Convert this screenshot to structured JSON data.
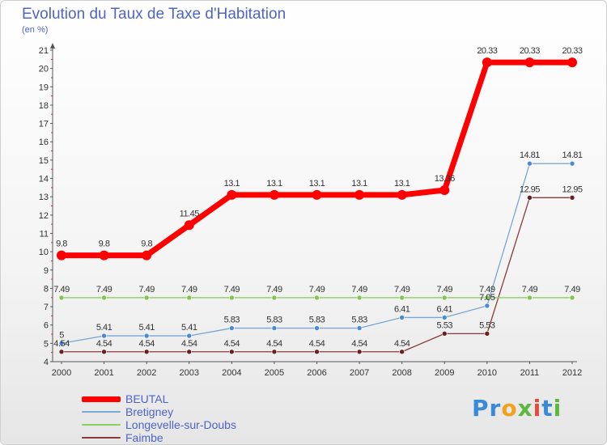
{
  "chart_data": {
    "type": "line",
    "title": "Evolution du Taux de Taxe d'Habitation",
    "ylabel": "(en %)",
    "xlabel": "",
    "x": [
      "2000",
      "2001",
      "2002",
      "2003",
      "2004",
      "2005",
      "2006",
      "2007",
      "2008",
      "2009",
      "2010",
      "2011",
      "2012"
    ],
    "ylim": [
      4,
      21
    ],
    "yticks": [
      "4",
      "5",
      "6",
      "7",
      "8",
      "9",
      "10",
      "11",
      "12",
      "13",
      "14",
      "15",
      "16",
      "17",
      "18",
      "19",
      "20",
      "21"
    ],
    "grid": false,
    "series": [
      {
        "name": "BEUTAL",
        "color": "#ff0000",
        "values": [
          9.8,
          9.8,
          9.8,
          11.45,
          13.1,
          13.1,
          13.1,
          13.1,
          13.1,
          13.36,
          20.33,
          20.33,
          20.33
        ],
        "labels": [
          "9.8",
          "9.8",
          "9.8",
          "11.45",
          "13.1",
          "13.1",
          "13.1",
          "13.1",
          "13.1",
          "13.36",
          "20.33",
          "20.33",
          "20.33"
        ]
      },
      {
        "name": "Bretigney",
        "color": "#7aa7d4",
        "marker": "#4a8ad4",
        "values": [
          5,
          5.41,
          5.41,
          5.41,
          5.83,
          5.83,
          5.83,
          5.83,
          6.41,
          6.41,
          7.05,
          14.81,
          14.81
        ],
        "labels": [
          "5",
          "5.41",
          "5.41",
          "5.41",
          "5.83",
          "5.83",
          "5.83",
          "5.83",
          "6.41",
          "6.41",
          "7.05",
          "14.81",
          "14.81"
        ]
      },
      {
        "name": "Longevelle-sur-Doubs",
        "color": "#88d060",
        "marker": "#7cc84a",
        "values": [
          7.49,
          7.49,
          7.49,
          7.49,
          7.49,
          7.49,
          7.49,
          7.49,
          7.49,
          7.49,
          7.49,
          7.49,
          7.49
        ],
        "labels": [
          "7.49",
          "7.49",
          "7.49",
          "7.49",
          "7.49",
          "7.49",
          "7.49",
          "7.49",
          "7.49",
          "7.49",
          "7.49",
          "7.49",
          "7.49"
        ]
      },
      {
        "name": "Faimbe",
        "color": "#8a3a3a",
        "marker": "#6b1e1e",
        "values": [
          4.54,
          4.54,
          4.54,
          4.54,
          4.54,
          4.54,
          4.54,
          4.54,
          4.54,
          5.53,
          5.53,
          12.95,
          12.95
        ],
        "labels": [
          "4.54",
          "4.54",
          "4.54",
          "4.54",
          "4.54",
          "4.54",
          "4.54",
          "4.54",
          "4.54",
          "5.53",
          "5.53",
          "12.95",
          "12.95"
        ]
      }
    ],
    "legend": "bottom-left",
    "legend_color": "#4f64c8"
  },
  "logo": {
    "p1": "Pr",
    "p2": "o",
    "p3": "x",
    "p4": "i",
    "p5": "t",
    "p6": "i"
  }
}
